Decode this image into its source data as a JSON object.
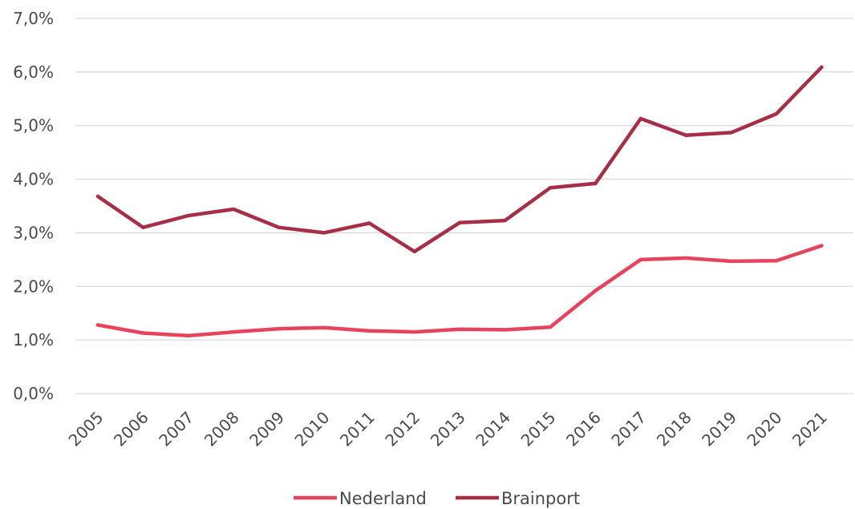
{
  "chart_data": {
    "type": "line",
    "title": "",
    "xlabel": "",
    "ylabel": "",
    "ylim": [
      0,
      7
    ],
    "y_ticks": [
      0,
      1,
      2,
      3,
      4,
      5,
      6,
      7
    ],
    "y_tick_labels": [
      "0,0%",
      "1,0%",
      "2,0%",
      "3,0%",
      "4,0%",
      "5,0%",
      "6,0%",
      "7,0%"
    ],
    "grid": "horizontal",
    "legend_position": "bottom",
    "categories": [
      "2005",
      "2006",
      "2007",
      "2008",
      "2009",
      "2010",
      "2011",
      "2012",
      "2013",
      "2014",
      "2015",
      "2016",
      "2017",
      "2018",
      "2019",
      "2020",
      "2021"
    ],
    "series": [
      {
        "name": "Nederland",
        "color": "#e8435c",
        "values": [
          1.28,
          1.13,
          1.08,
          1.15,
          1.21,
          1.23,
          1.17,
          1.15,
          1.2,
          1.19,
          1.24,
          1.92,
          2.5,
          2.53,
          2.47,
          2.48,
          2.76
        ]
      },
      {
        "name": "Brainport",
        "color": "#a62f47",
        "values": [
          3.68,
          3.1,
          3.32,
          3.44,
          3.1,
          3.0,
          3.18,
          2.65,
          3.19,
          3.23,
          3.84,
          3.92,
          5.13,
          4.82,
          4.87,
          5.22,
          6.09
        ]
      }
    ]
  }
}
